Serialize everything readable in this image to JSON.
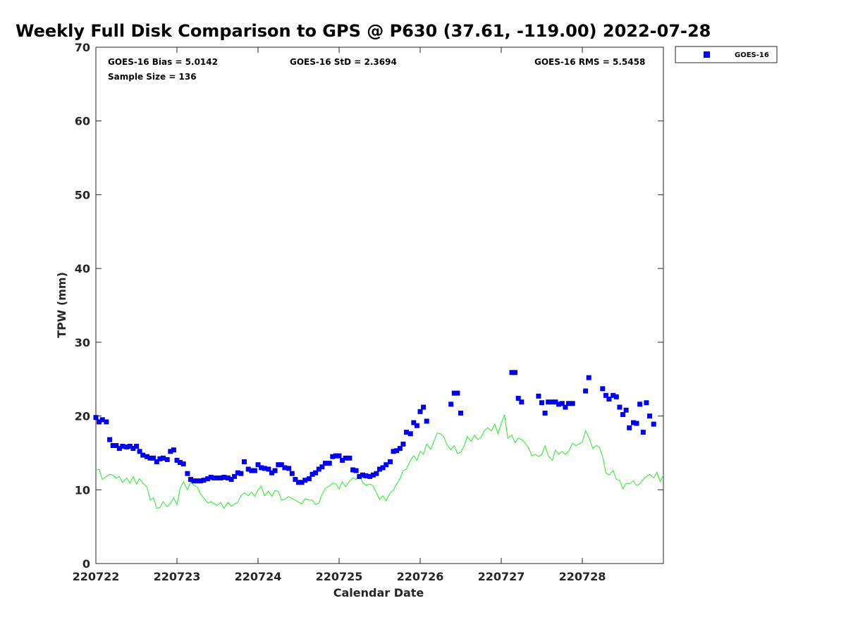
{
  "title": "Weekly Full Disk Comparison to GPS @ P630 (37.61, -119.00) 2022-07-28",
  "stats": {
    "bias": "GOES-16 Bias = 5.0142",
    "std": "GOES-16 StD = 2.3694",
    "rms": "GOES-16 RMS = 5.5458",
    "sample": "Sample Size = 136"
  },
  "chart_data": {
    "type": "scatter",
    "xlabel": "Calendar Date",
    "ylabel": "TPW (mm)",
    "x_unit": "days",
    "xlim": [
      0,
      7
    ],
    "ylim": [
      0,
      70
    ],
    "yticks": [
      0,
      10,
      20,
      30,
      40,
      50,
      60,
      70
    ],
    "xticks": [
      {
        "pos": 0,
        "label": "220722"
      },
      {
        "pos": 1,
        "label": "220723"
      },
      {
        "pos": 2,
        "label": "220724"
      },
      {
        "pos": 3,
        "label": "220725"
      },
      {
        "pos": 4,
        "label": "220726"
      },
      {
        "pos": 5,
        "label": "220727"
      },
      {
        "pos": 6,
        "label": "220728"
      }
    ],
    "legend": {
      "position": "top-right-outside",
      "entries": [
        "GOES-16"
      ]
    },
    "series": [
      {
        "name": "GOES-16",
        "kind": "scatter",
        "marker": "square",
        "color": "#0000ee",
        "points": [
          [
            0.0,
            19.8
          ],
          [
            0.04,
            19.2
          ],
          [
            0.08,
            19.5
          ],
          [
            0.13,
            19.2
          ],
          [
            0.17,
            16.8
          ],
          [
            0.21,
            16.0
          ],
          [
            0.25,
            16.0
          ],
          [
            0.29,
            15.6
          ],
          [
            0.33,
            15.9
          ],
          [
            0.38,
            15.8
          ],
          [
            0.42,
            15.9
          ],
          [
            0.46,
            15.6
          ],
          [
            0.5,
            15.9
          ],
          [
            0.54,
            15.2
          ],
          [
            0.58,
            14.7
          ],
          [
            0.63,
            14.5
          ],
          [
            0.67,
            14.3
          ],
          [
            0.71,
            14.3
          ],
          [
            0.75,
            13.8
          ],
          [
            0.79,
            14.2
          ],
          [
            0.83,
            14.3
          ],
          [
            0.88,
            14.1
          ],
          [
            0.92,
            15.2
          ],
          [
            0.96,
            15.4
          ],
          [
            1.0,
            14.0
          ],
          [
            1.04,
            13.7
          ],
          [
            1.08,
            13.5
          ],
          [
            1.13,
            12.2
          ],
          [
            1.17,
            11.4
          ],
          [
            1.21,
            11.2
          ],
          [
            1.25,
            11.2
          ],
          [
            1.29,
            11.2
          ],
          [
            1.33,
            11.3
          ],
          [
            1.38,
            11.5
          ],
          [
            1.42,
            11.7
          ],
          [
            1.46,
            11.6
          ],
          [
            1.5,
            11.6
          ],
          [
            1.54,
            11.6
          ],
          [
            1.58,
            11.7
          ],
          [
            1.63,
            11.6
          ],
          [
            1.67,
            11.4
          ],
          [
            1.71,
            11.8
          ],
          [
            1.75,
            12.3
          ],
          [
            1.79,
            12.2
          ],
          [
            1.83,
            13.8
          ],
          [
            1.88,
            12.8
          ],
          [
            1.92,
            12.6
          ],
          [
            1.96,
            12.6
          ],
          [
            2.0,
            13.4
          ],
          [
            2.04,
            13.0
          ],
          [
            2.08,
            12.9
          ],
          [
            2.13,
            12.8
          ],
          [
            2.17,
            12.3
          ],
          [
            2.21,
            12.6
          ],
          [
            2.25,
            13.4
          ],
          [
            2.29,
            13.4
          ],
          [
            2.33,
            13.0
          ],
          [
            2.38,
            12.9
          ],
          [
            2.42,
            12.2
          ],
          [
            2.46,
            11.4
          ],
          [
            2.5,
            11.0
          ],
          [
            2.54,
            11.0
          ],
          [
            2.58,
            11.3
          ],
          [
            2.63,
            11.5
          ],
          [
            2.67,
            12.1
          ],
          [
            2.71,
            12.3
          ],
          [
            2.75,
            12.8
          ],
          [
            2.79,
            13.1
          ],
          [
            2.83,
            13.6
          ],
          [
            2.88,
            13.6
          ],
          [
            2.92,
            14.5
          ],
          [
            2.96,
            14.6
          ],
          [
            3.0,
            14.6
          ],
          [
            3.04,
            14.0
          ],
          [
            3.08,
            14.3
          ],
          [
            3.13,
            14.3
          ],
          [
            3.17,
            12.7
          ],
          [
            3.21,
            12.6
          ],
          [
            3.25,
            11.8
          ],
          [
            3.29,
            12.0
          ],
          [
            3.33,
            11.9
          ],
          [
            3.38,
            11.8
          ],
          [
            3.42,
            12.0
          ],
          [
            3.46,
            12.2
          ],
          [
            3.5,
            12.8
          ],
          [
            3.54,
            13.0
          ],
          [
            3.58,
            13.4
          ],
          [
            3.63,
            13.8
          ],
          [
            3.67,
            15.2
          ],
          [
            3.71,
            15.3
          ],
          [
            3.75,
            15.6
          ],
          [
            3.79,
            16.2
          ],
          [
            3.83,
            17.8
          ],
          [
            3.88,
            17.6
          ],
          [
            3.92,
            19.1
          ],
          [
            3.96,
            18.7
          ],
          [
            4.0,
            20.6
          ],
          [
            4.04,
            21.2
          ],
          [
            4.08,
            19.3
          ],
          [
            4.38,
            21.6
          ],
          [
            4.42,
            23.1
          ],
          [
            4.46,
            23.1
          ],
          [
            4.5,
            20.4
          ],
          [
            5.13,
            25.9
          ],
          [
            5.17,
            25.9
          ],
          [
            5.21,
            22.4
          ],
          [
            5.25,
            21.9
          ],
          [
            5.46,
            22.7
          ],
          [
            5.5,
            21.8
          ],
          [
            5.54,
            20.4
          ],
          [
            5.58,
            21.9
          ],
          [
            5.63,
            21.9
          ],
          [
            5.67,
            21.9
          ],
          [
            5.71,
            21.6
          ],
          [
            5.75,
            21.7
          ],
          [
            5.79,
            21.2
          ],
          [
            5.83,
            21.7
          ],
          [
            5.88,
            21.7
          ],
          [
            6.04,
            23.4
          ],
          [
            6.08,
            25.2
          ],
          [
            6.25,
            23.7
          ],
          [
            6.29,
            22.8
          ],
          [
            6.33,
            22.3
          ],
          [
            6.38,
            22.8
          ],
          [
            6.42,
            22.6
          ],
          [
            6.46,
            21.2
          ],
          [
            6.5,
            20.2
          ],
          [
            6.54,
            20.8
          ],
          [
            6.58,
            18.4
          ],
          [
            6.63,
            19.1
          ],
          [
            6.67,
            19.0
          ],
          [
            6.71,
            21.6
          ],
          [
            6.75,
            17.8
          ],
          [
            6.79,
            21.8
          ],
          [
            6.83,
            20.0
          ],
          [
            6.88,
            18.9
          ]
        ]
      },
      {
        "name": "GPS",
        "kind": "line",
        "color": "#22ee22",
        "points": [
          [
            0.0,
            12.6
          ],
          [
            0.04,
            12.8
          ],
          [
            0.08,
            11.4
          ],
          [
            0.13,
            11.8
          ],
          [
            0.17,
            12.1
          ],
          [
            0.21,
            12.0
          ],
          [
            0.25,
            11.6
          ],
          [
            0.29,
            11.8
          ],
          [
            0.33,
            11.0
          ],
          [
            0.38,
            11.6
          ],
          [
            0.42,
            10.9
          ],
          [
            0.46,
            11.8
          ],
          [
            0.5,
            10.8
          ],
          [
            0.54,
            11.5
          ],
          [
            0.58,
            10.9
          ],
          [
            0.63,
            10.4
          ],
          [
            0.67,
            8.6
          ],
          [
            0.71,
            8.9
          ],
          [
            0.75,
            7.5
          ],
          [
            0.79,
            7.6
          ],
          [
            0.83,
            8.4
          ],
          [
            0.88,
            7.7
          ],
          [
            0.92,
            8.2
          ],
          [
            0.96,
            8.9
          ],
          [
            1.0,
            8.0
          ],
          [
            1.04,
            10.2
          ],
          [
            1.08,
            11.1
          ],
          [
            1.13,
            10.0
          ],
          [
            1.17,
            11.1
          ],
          [
            1.21,
            10.6
          ],
          [
            1.25,
            10.4
          ],
          [
            1.29,
            9.4
          ],
          [
            1.33,
            8.9
          ],
          [
            1.38,
            8.2
          ],
          [
            1.42,
            8.4
          ],
          [
            1.46,
            8.1
          ],
          [
            1.5,
            7.9
          ],
          [
            1.54,
            8.3
          ],
          [
            1.58,
            7.5
          ],
          [
            1.63,
            8.3
          ],
          [
            1.67,
            7.8
          ],
          [
            1.71,
            8.1
          ],
          [
            1.75,
            8.3
          ],
          [
            1.79,
            9.2
          ],
          [
            1.83,
            9.6
          ],
          [
            1.88,
            9.2
          ],
          [
            1.92,
            9.7
          ],
          [
            1.96,
            9.1
          ],
          [
            2.0,
            10.0
          ],
          [
            2.04,
            10.5
          ],
          [
            2.08,
            9.2
          ],
          [
            2.13,
            9.8
          ],
          [
            2.17,
            9.1
          ],
          [
            2.21,
            9.9
          ],
          [
            2.25,
            9.8
          ],
          [
            2.29,
            8.6
          ],
          [
            2.33,
            8.7
          ],
          [
            2.38,
            9.1
          ],
          [
            2.42,
            8.8
          ],
          [
            2.46,
            8.6
          ],
          [
            2.5,
            8.3
          ],
          [
            2.54,
            8.1
          ],
          [
            2.58,
            8.8
          ],
          [
            2.63,
            8.6
          ],
          [
            2.67,
            8.6
          ],
          [
            2.71,
            8.0
          ],
          [
            2.75,
            8.2
          ],
          [
            2.79,
            9.4
          ],
          [
            2.83,
            10.2
          ],
          [
            2.88,
            10.5
          ],
          [
            2.92,
            10.9
          ],
          [
            2.96,
            10.8
          ],
          [
            3.0,
            10.1
          ],
          [
            3.04,
            11.1
          ],
          [
            3.08,
            10.4
          ],
          [
            3.13,
            11.2
          ],
          [
            3.17,
            11.6
          ],
          [
            3.21,
            11.4
          ],
          [
            3.25,
            11.9
          ],
          [
            3.29,
            11.0
          ],
          [
            3.33,
            10.6
          ],
          [
            3.38,
            10.8
          ],
          [
            3.42,
            10.5
          ],
          [
            3.46,
            9.6
          ],
          [
            3.5,
            8.7
          ],
          [
            3.54,
            9.2
          ],
          [
            3.58,
            8.5
          ],
          [
            3.63,
            9.6
          ],
          [
            3.67,
            9.9
          ],
          [
            3.71,
            10.8
          ],
          [
            3.75,
            11.5
          ],
          [
            3.79,
            12.6
          ],
          [
            3.83,
            12.8
          ],
          [
            3.88,
            14.0
          ],
          [
            3.92,
            14.6
          ],
          [
            3.96,
            14.0
          ],
          [
            4.0,
            15.2
          ],
          [
            4.04,
            14.8
          ],
          [
            4.08,
            16.2
          ],
          [
            4.13,
            15.5
          ],
          [
            4.17,
            16.6
          ],
          [
            4.21,
            17.7
          ],
          [
            4.25,
            17.6
          ],
          [
            4.29,
            17.2
          ],
          [
            4.33,
            16.1
          ],
          [
            4.38,
            15.4
          ],
          [
            4.42,
            16.0
          ],
          [
            4.46,
            14.9
          ],
          [
            4.5,
            15.1
          ],
          [
            4.54,
            15.9
          ],
          [
            4.58,
            17.2
          ],
          [
            4.63,
            16.6
          ],
          [
            4.67,
            17.4
          ],
          [
            4.71,
            16.8
          ],
          [
            4.75,
            17.1
          ],
          [
            4.79,
            18.0
          ],
          [
            4.83,
            18.4
          ],
          [
            4.88,
            18.0
          ],
          [
            4.92,
            18.9
          ],
          [
            4.96,
            17.6
          ],
          [
            5.0,
            19.0
          ],
          [
            5.04,
            20.2
          ],
          [
            5.08,
            17.0
          ],
          [
            5.13,
            17.4
          ],
          [
            5.17,
            16.4
          ],
          [
            5.21,
            17.0
          ],
          [
            5.25,
            16.8
          ],
          [
            5.29,
            16.4
          ],
          [
            5.33,
            15.8
          ],
          [
            5.38,
            14.6
          ],
          [
            5.42,
            14.8
          ],
          [
            5.46,
            14.5
          ],
          [
            5.5,
            14.8
          ],
          [
            5.54,
            16.0
          ],
          [
            5.58,
            14.6
          ],
          [
            5.63,
            14.0
          ],
          [
            5.67,
            15.4
          ],
          [
            5.71,
            14.8
          ],
          [
            5.75,
            15.2
          ],
          [
            5.79,
            14.8
          ],
          [
            5.83,
            15.2
          ],
          [
            5.88,
            16.3
          ],
          [
            5.92,
            16.0
          ],
          [
            5.96,
            16.2
          ],
          [
            6.0,
            16.5
          ],
          [
            6.04,
            18.0
          ],
          [
            6.08,
            17.1
          ],
          [
            6.13,
            15.6
          ],
          [
            6.17,
            16.0
          ],
          [
            6.21,
            15.8
          ],
          [
            6.25,
            14.5
          ],
          [
            6.29,
            12.3
          ],
          [
            6.33,
            12.0
          ],
          [
            6.38,
            12.6
          ],
          [
            6.42,
            11.4
          ],
          [
            6.46,
            11.3
          ],
          [
            6.5,
            10.1
          ],
          [
            6.54,
            10.9
          ],
          [
            6.58,
            10.8
          ],
          [
            6.63,
            11.2
          ],
          [
            6.67,
            10.6
          ],
          [
            6.71,
            10.8
          ],
          [
            6.75,
            11.4
          ],
          [
            6.79,
            11.8
          ],
          [
            6.83,
            12.1
          ],
          [
            6.88,
            11.6
          ],
          [
            6.92,
            12.4
          ],
          [
            6.96,
            11.1
          ],
          [
            7.0,
            12.0
          ]
        ]
      }
    ]
  }
}
